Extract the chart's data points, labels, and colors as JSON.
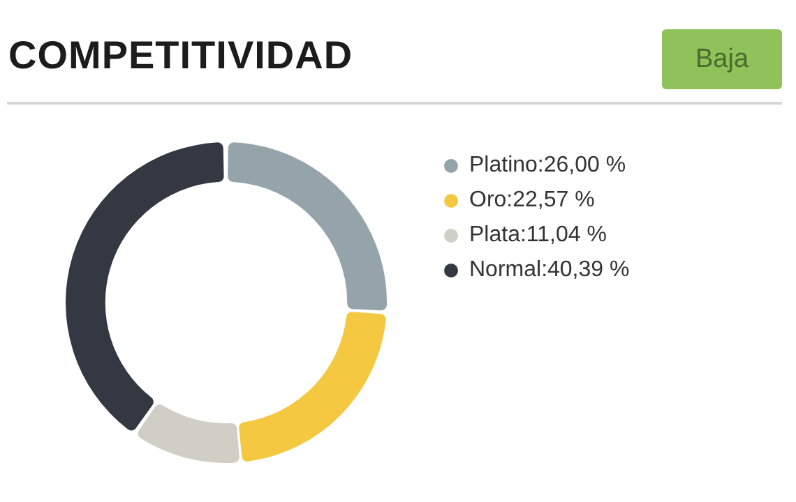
{
  "chart_data": {
    "type": "donut",
    "title": "COMPETITIVIDAD",
    "annotations": [
      "Baja"
    ],
    "categories": [
      "Platino",
      "Oro",
      "Plata",
      "Normal"
    ],
    "values": [
      26.0,
      22.57,
      11.04,
      40.39
    ],
    "value_labels": [
      "26,00 %",
      "22,57 %",
      "11,04 %",
      "40,39 %"
    ],
    "colors": [
      "#95a4ab",
      "#f5c842",
      "#cfcfc5",
      "#333842"
    ],
    "legend": "right"
  }
}
